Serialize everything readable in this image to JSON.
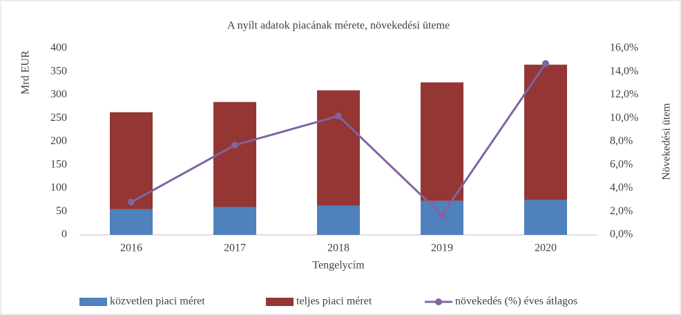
{
  "chart_data": {
    "type": "bar",
    "stacked": true,
    "title": "A nyílt adatok piacának mérete, növekedési üteme",
    "ylabel": "Mrd EUR",
    "y2label": "Növekedési ütem",
    "xlabel": "Tengelycím",
    "categories": [
      "2016",
      "2017",
      "2018",
      "2019",
      "2020"
    ],
    "series": [
      {
        "name": "közvetlen piaci méret",
        "color": "#4f81bd",
        "type": "bar",
        "values": [
          55,
          60,
          63,
          73,
          75
        ]
      },
      {
        "name": "teljes piaci méret",
        "color": "#943634",
        "type": "bar",
        "values": [
          208,
          225,
          247,
          254,
          290
        ]
      },
      {
        "name": "növekedés (%) éves átlagos",
        "color": "#8064a2",
        "type": "line",
        "axis": "y2",
        "values": [
          2.8,
          7.7,
          10.2,
          1.7,
          14.7
        ]
      }
    ],
    "ylim": [
      0,
      400
    ],
    "yticks": [
      0,
      50,
      100,
      150,
      200,
      250,
      300,
      350,
      400
    ],
    "y2lim": [
      0,
      16
    ],
    "y2ticks": [
      {
        "value": 0,
        "label": "0,0%"
      },
      {
        "value": 2,
        "label": "2,0%"
      },
      {
        "value": 4,
        "label": "4,0%"
      },
      {
        "value": 6,
        "label": "6,0%"
      },
      {
        "value": 8,
        "label": "8,0%"
      },
      {
        "value": 10,
        "label": "10,0%"
      },
      {
        "value": 12,
        "label": "12,0%"
      },
      {
        "value": 14,
        "label": "14,0%"
      },
      {
        "value": 16,
        "label": "16,0%"
      }
    ],
    "legend": "bottom"
  }
}
